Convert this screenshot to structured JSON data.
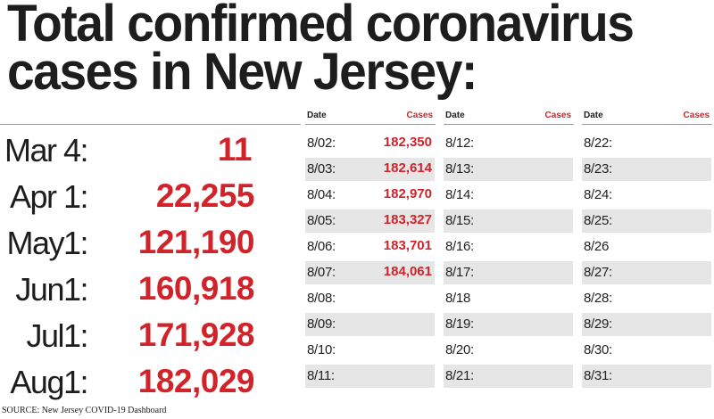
{
  "headline": {
    "line1": "Total confirmed coronavirus",
    "line2": "cases in New Jersey:"
  },
  "milestones": [
    {
      "date": "Mar 4:",
      "cases": "11"
    },
    {
      "date": "Apr 1:",
      "cases": "22,255"
    },
    {
      "date": "May1:",
      "cases": "121,190"
    },
    {
      "date": "Jun1:",
      "cases": "160,918"
    },
    {
      "date": "Jul1:",
      "cases": "171,928"
    },
    {
      "date": "Aug1:",
      "cases": "182,029"
    }
  ],
  "table_columns": [
    {
      "date_header": "Date",
      "cases_header": "Cases",
      "rows": [
        {
          "date": "8/02:",
          "cases": "182,350"
        },
        {
          "date": "8/03:",
          "cases": "182,614"
        },
        {
          "date": "8/04:",
          "cases": "182,970"
        },
        {
          "date": "8/05:",
          "cases": "183,327"
        },
        {
          "date": "8/06:",
          "cases": "183,701"
        },
        {
          "date": "8/07:",
          "cases": "184,061"
        },
        {
          "date": "8/08:",
          "cases": ""
        },
        {
          "date": "8/09:",
          "cases": ""
        },
        {
          "date": "8/10:",
          "cases": ""
        },
        {
          "date": "8/11:",
          "cases": ""
        }
      ]
    },
    {
      "date_header": "Date",
      "cases_header": "Cases",
      "rows": [
        {
          "date": "8/12:",
          "cases": ""
        },
        {
          "date": "8/13:",
          "cases": ""
        },
        {
          "date": "8/14:",
          "cases": ""
        },
        {
          "date": "8/15:",
          "cases": ""
        },
        {
          "date": "8/16:",
          "cases": ""
        },
        {
          "date": "8/17:",
          "cases": ""
        },
        {
          "date": "8/18",
          "cases": ""
        },
        {
          "date": "8/19:",
          "cases": ""
        },
        {
          "date": "8/20:",
          "cases": ""
        },
        {
          "date": "8/21:",
          "cases": ""
        }
      ]
    },
    {
      "date_header": "Date",
      "cases_header": "Cases",
      "rows": [
        {
          "date": "8/22:",
          "cases": ""
        },
        {
          "date": "8/23:",
          "cases": ""
        },
        {
          "date": "8/24:",
          "cases": ""
        },
        {
          "date": "8/25:",
          "cases": ""
        },
        {
          "date": "8/26",
          "cases": ""
        },
        {
          "date": "8/27:",
          "cases": ""
        },
        {
          "date": "8/28:",
          "cases": ""
        },
        {
          "date": "8/29:",
          "cases": ""
        },
        {
          "date": "8/30:",
          "cases": ""
        },
        {
          "date": "8/31:",
          "cases": ""
        }
      ]
    }
  ],
  "source": "SOURCE: New Jersey COVID-19 Dashboard",
  "colors": {
    "accent_red": "#d2232a",
    "text_dark": "#1d1d1d",
    "row_shade": "#e6e6e6",
    "rule": "#9a9a9a"
  }
}
